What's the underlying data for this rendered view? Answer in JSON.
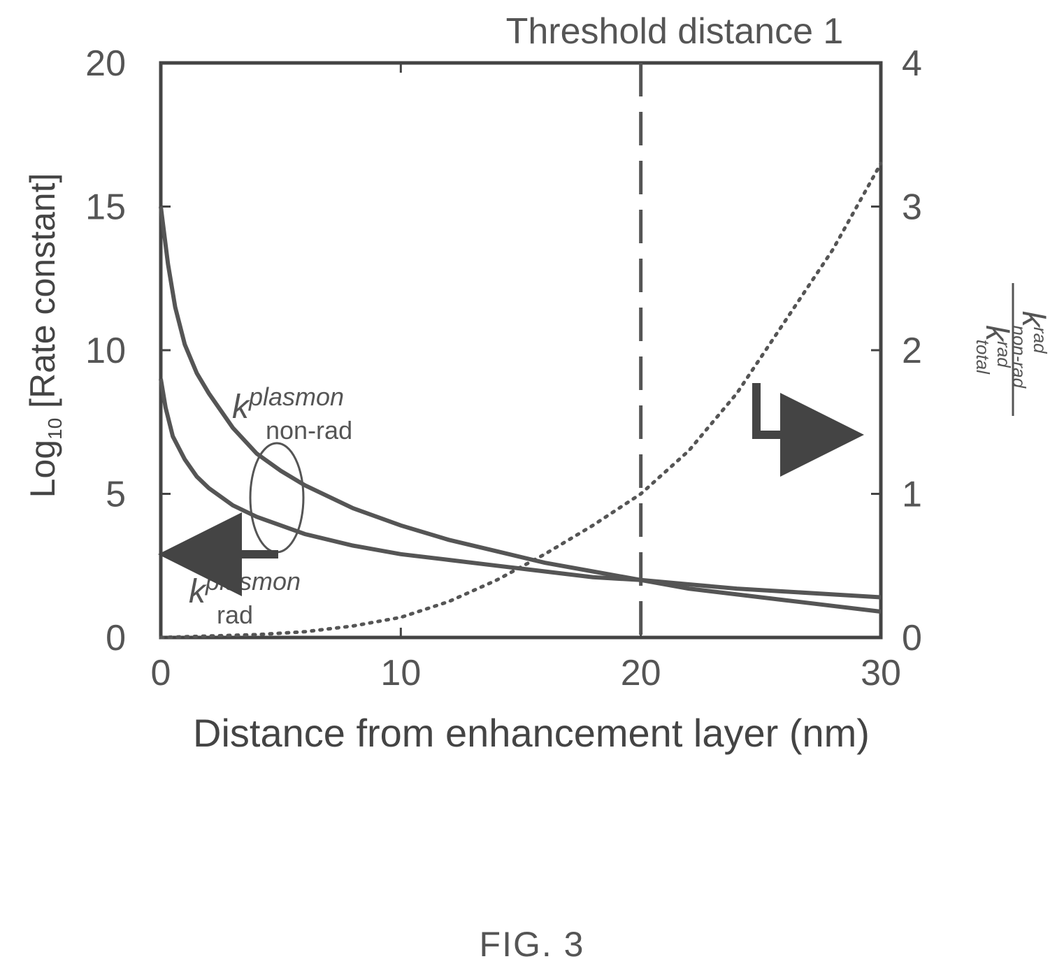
{
  "chart_data": {
    "type": "line",
    "annotation_top": "Threshold distance 1",
    "xlabel": "Distance from enhancement layer (nm)",
    "ylabel_left": {
      "prefix": "Log",
      "subscript": "10",
      "suffix": " [Rate constant]"
    },
    "ylabel_right": {
      "num_k": "k",
      "num_sup": "rad",
      "num_sub": "non-rad",
      "den_k": "k",
      "den_sup": "rad",
      "den_sub": "total"
    },
    "xlim": [
      0,
      30
    ],
    "ylim_left": [
      0,
      20
    ],
    "ylim_right": [
      0,
      4
    ],
    "xticks": [
      "0",
      "10",
      "20",
      "30"
    ],
    "yticks_left": [
      "0",
      "5",
      "10",
      "15",
      "20"
    ],
    "yticks_right": [
      "0",
      "1",
      "2",
      "3",
      "4"
    ],
    "threshold_x": 20,
    "series": [
      {
        "label_k": "k",
        "label_sup": "plasmon",
        "label_sub": "non-rad",
        "axis": "left",
        "style": "solid",
        "x": [
          0,
          0.3,
          0.6,
          1,
          1.5,
          2,
          3,
          4,
          5,
          6,
          8,
          10,
          12,
          14,
          16,
          18,
          20,
          22,
          24,
          26,
          28,
          30
        ],
        "y": [
          15,
          13,
          11.5,
          10.2,
          9.2,
          8.5,
          7.3,
          6.4,
          5.8,
          5.3,
          4.5,
          3.9,
          3.4,
          3.0,
          2.6,
          2.3,
          2.0,
          1.7,
          1.5,
          1.3,
          1.1,
          0.9
        ]
      },
      {
        "label_k": "k",
        "label_sup": "plasmon",
        "label_sub": "rad",
        "axis": "left",
        "style": "solid",
        "x": [
          0,
          0.2,
          0.5,
          1,
          1.5,
          2,
          3,
          4,
          5,
          6,
          8,
          10,
          12,
          14,
          16,
          18,
          20,
          22,
          24,
          26,
          28,
          30
        ],
        "y": [
          9,
          8,
          7,
          6.2,
          5.6,
          5.2,
          4.6,
          4.2,
          3.9,
          3.6,
          3.2,
          2.9,
          2.7,
          2.5,
          2.3,
          2.1,
          2.0,
          1.85,
          1.7,
          1.6,
          1.5,
          1.4
        ]
      },
      {
        "label_k": "",
        "label_sup": "",
        "label_sub": "",
        "axis": "right",
        "style": "dotted",
        "x": [
          0,
          2,
          4,
          6,
          8,
          10,
          12,
          14,
          16,
          18,
          20,
          22,
          24,
          26,
          28,
          30
        ],
        "y": [
          0,
          0.01,
          0.02,
          0.04,
          0.08,
          0.14,
          0.25,
          0.4,
          0.58,
          0.78,
          1.0,
          1.3,
          1.7,
          2.2,
          2.7,
          3.3
        ]
      }
    ]
  },
  "figure_caption": "FIG. 3"
}
